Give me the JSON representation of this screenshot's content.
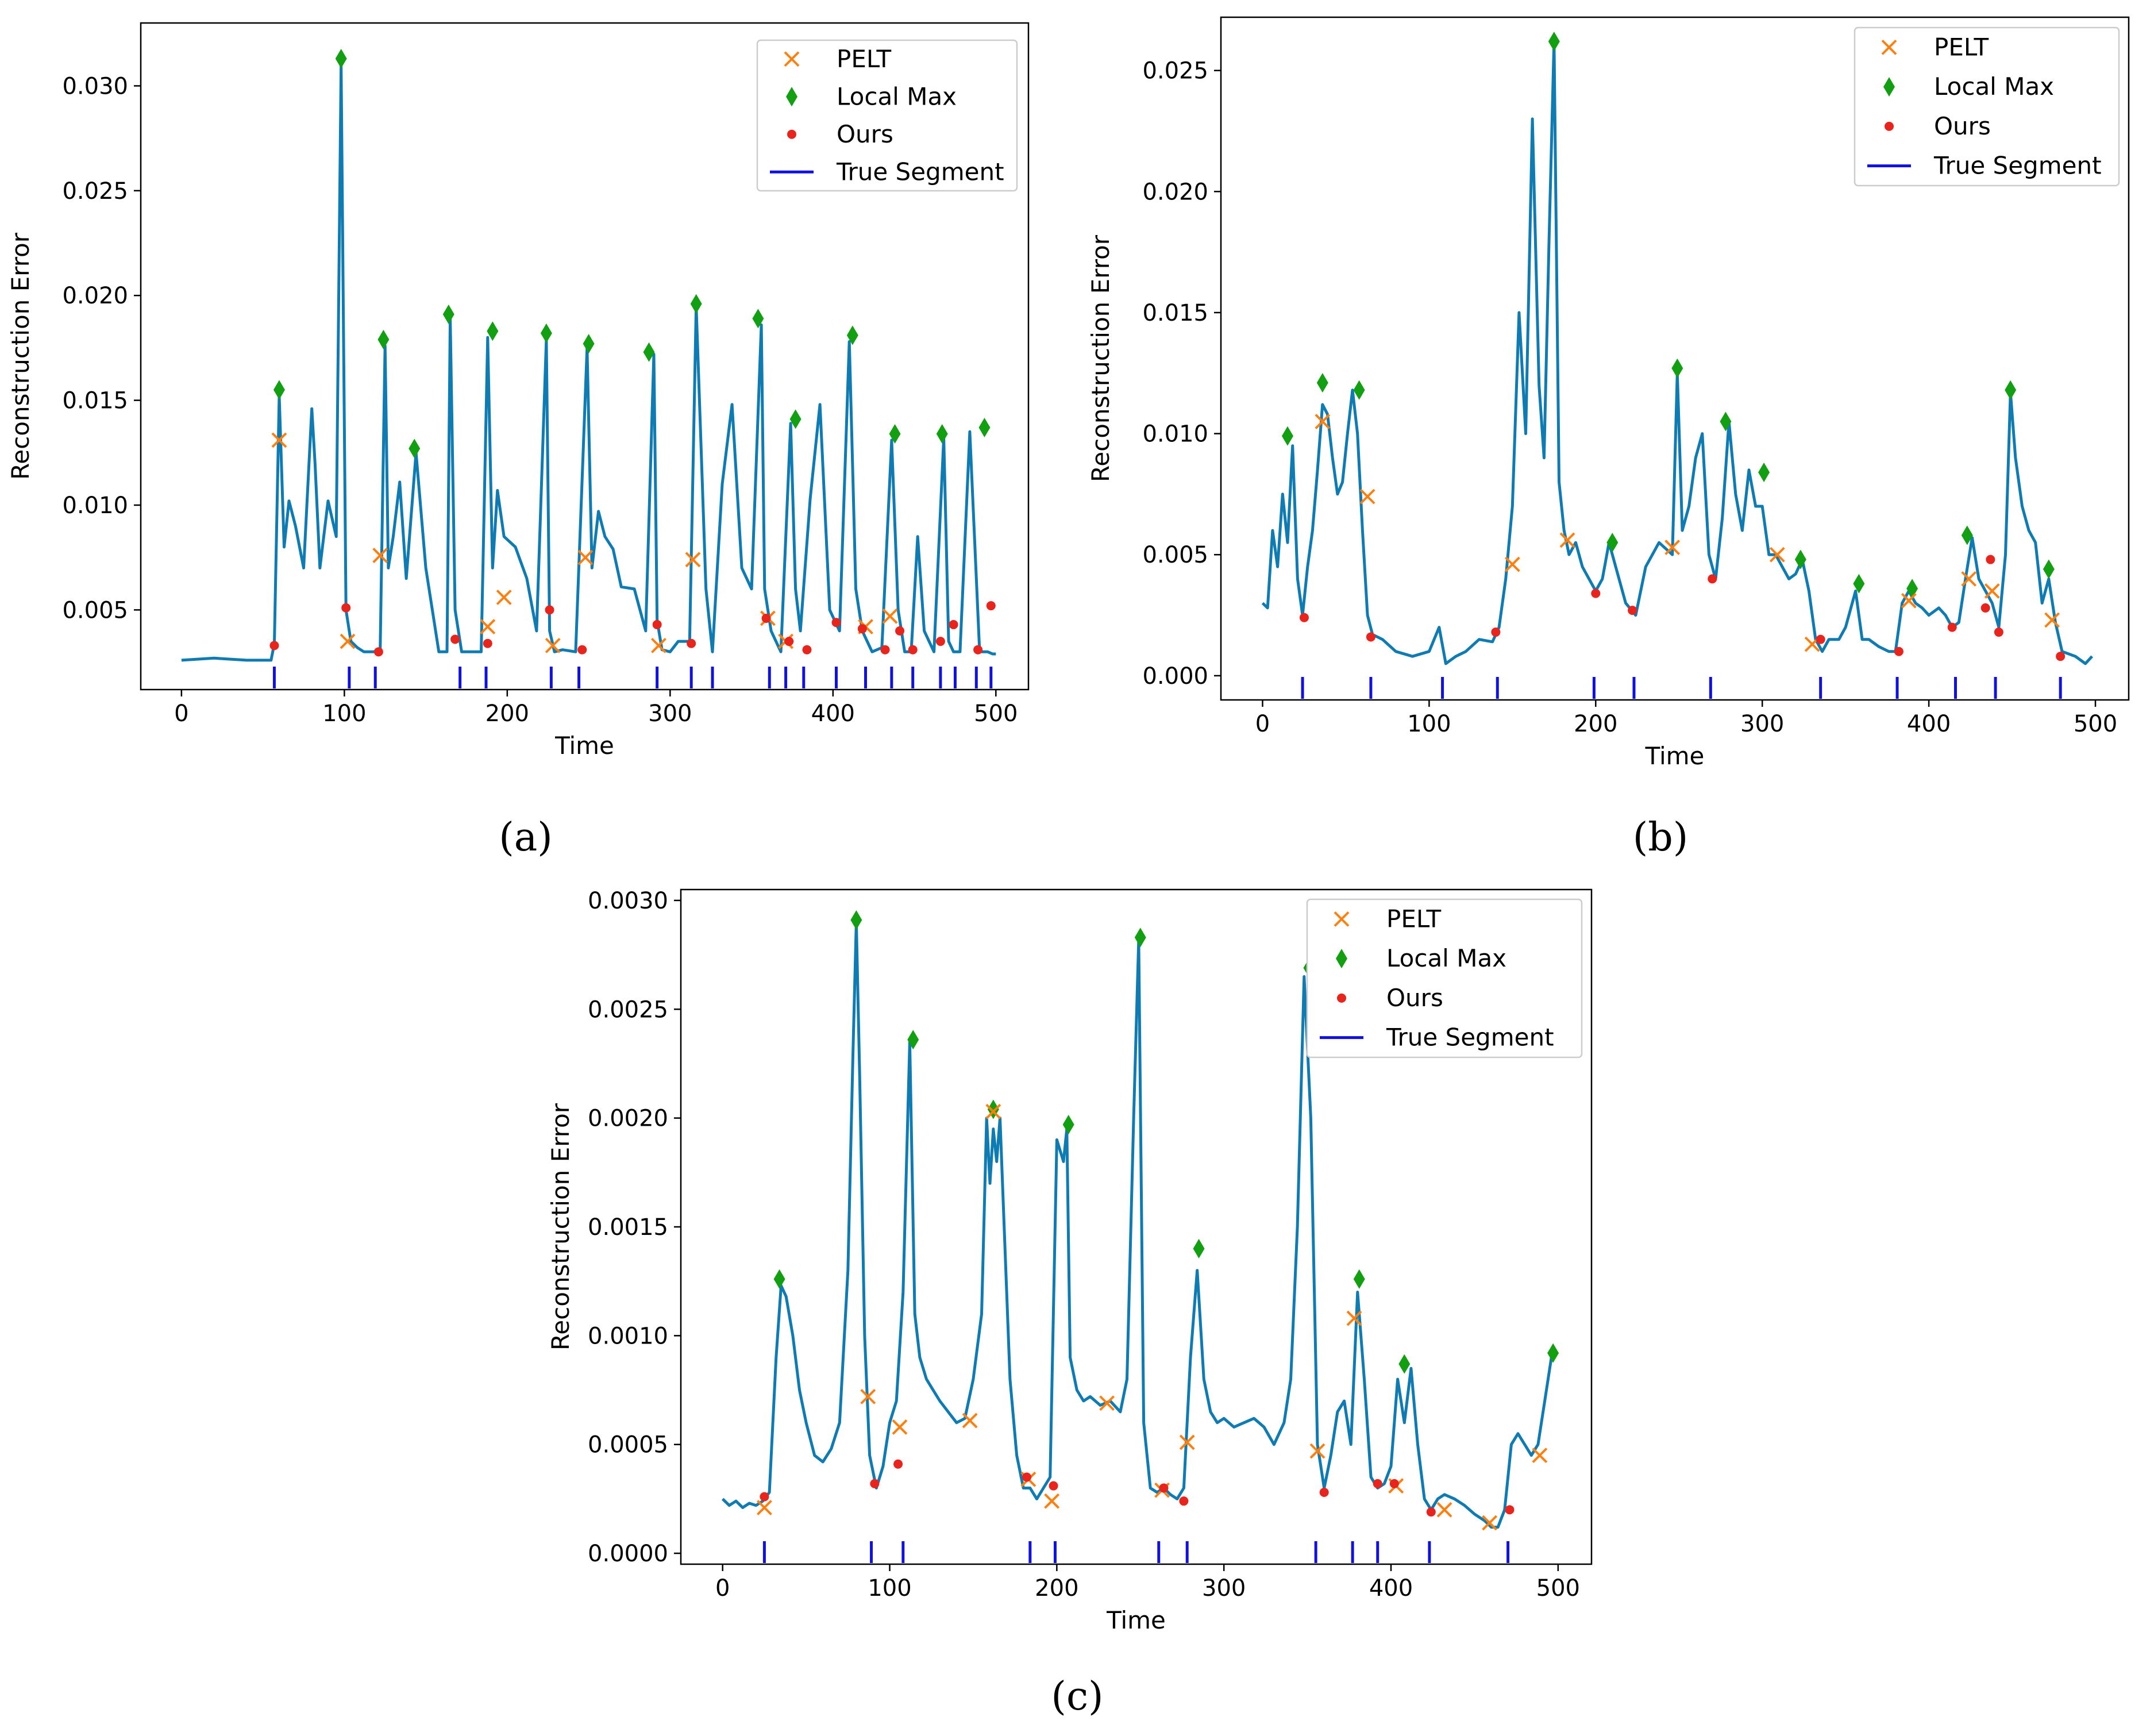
{
  "colors": {
    "line": "#1f77b4",
    "line_dark": "#0e7bb3",
    "pelt": "#ff7f0e",
    "local_max": "#12a012",
    "ours": "#e8241c",
    "true_segment": "#1010e0"
  },
  "chart_data": [
    {
      "panel": "a",
      "caption": "(a)",
      "type": "line",
      "xlabel": "Time",
      "ylabel": "Reconstruction Error",
      "xlim": [
        -25,
        520
      ],
      "ylim": [
        0.0012,
        0.033
      ],
      "xticks": [
        0,
        100,
        200,
        300,
        400,
        500
      ],
      "xtick_labels": [
        "0",
        "100",
        "200",
        "300",
        "400",
        "500"
      ],
      "yticks": [
        0.005,
        0.01,
        0.015,
        0.02,
        0.025,
        0.03
      ],
      "ytick_labels": [
        "0.005",
        "0.010",
        "0.015",
        "0.020",
        "0.025",
        "0.030"
      ],
      "legend": {
        "position": "top-right",
        "entries": [
          "PELT",
          "Local Max",
          "Ours",
          "True Segment"
        ]
      },
      "series": {
        "x": [
          0,
          20,
          40,
          55,
          57,
          60,
          63,
          66,
          70,
          75,
          80,
          82,
          85,
          90,
          95,
          98,
          101,
          104,
          108,
          112,
          118,
          122,
          125,
          127,
          130,
          134,
          138,
          144,
          150,
          158,
          163,
          165,
          168,
          172,
          176,
          184,
          188,
          191,
          194,
          198,
          205,
          212,
          218,
          224,
          226,
          229,
          234,
          242,
          249,
          252,
          256,
          260,
          265,
          270,
          278,
          285,
          290,
          292,
          295,
          300,
          305,
          312,
          316,
          318,
          322,
          326,
          332,
          338,
          344,
          350,
          356,
          358,
          362,
          368,
          374,
          377,
          380,
          386,
          392,
          398,
          404,
          410,
          412,
          414,
          418,
          424,
          430,
          436,
          440,
          444,
          448,
          452,
          456,
          462,
          468,
          471,
          474,
          478,
          484,
          490,
          495,
          498,
          500
        ],
        "y": [
          0.0026,
          0.0027,
          0.0026,
          0.0026,
          0.0034,
          0.0152,
          0.008,
          0.0102,
          0.009,
          0.007,
          0.0146,
          0.012,
          0.007,
          0.0102,
          0.0085,
          0.031,
          0.005,
          0.0035,
          0.0032,
          0.003,
          0.003,
          0.0031,
          0.0176,
          0.007,
          0.0085,
          0.0111,
          0.0065,
          0.0125,
          0.007,
          0.003,
          0.003,
          0.0189,
          0.005,
          0.003,
          0.003,
          0.003,
          0.018,
          0.007,
          0.0107,
          0.0085,
          0.008,
          0.0065,
          0.004,
          0.0179,
          0.004,
          0.003,
          0.0031,
          0.003,
          0.0175,
          0.007,
          0.0097,
          0.0085,
          0.0079,
          0.0061,
          0.006,
          0.004,
          0.0172,
          0.0045,
          0.0031,
          0.003,
          0.0035,
          0.0035,
          0.0195,
          0.015,
          0.006,
          0.003,
          0.011,
          0.0148,
          0.007,
          0.006,
          0.0186,
          0.006,
          0.004,
          0.003,
          0.0139,
          0.006,
          0.004,
          0.0103,
          0.0148,
          0.005,
          0.004,
          0.0178,
          0.012,
          0.006,
          0.004,
          0.003,
          0.0032,
          0.0131,
          0.005,
          0.003,
          0.003,
          0.0085,
          0.004,
          0.003,
          0.0132,
          0.0035,
          0.003,
          0.003,
          0.0135,
          0.003,
          0.003,
          0.0029,
          0.0029
        ]
      },
      "pelt": {
        "x": [
          60,
          102,
          122,
          188,
          198,
          228,
          248,
          293,
          314,
          360,
          371,
          420,
          435
        ],
        "y": [
          0.0131,
          0.0035,
          0.0076,
          0.0042,
          0.0056,
          0.0033,
          0.0075,
          0.0033,
          0.0074,
          0.0046,
          0.0035,
          0.0042,
          0.0047
        ]
      },
      "local_max": {
        "x": [
          60,
          98,
          124,
          143,
          164,
          191,
          224,
          250,
          287,
          316,
          354,
          377,
          412,
          438,
          467,
          493
        ],
        "y": [
          0.0155,
          0.0313,
          0.0179,
          0.0127,
          0.0191,
          0.0183,
          0.0182,
          0.0177,
          0.0173,
          0.0196,
          0.0189,
          0.0141,
          0.0181,
          0.0134,
          0.0134,
          0.0137
        ]
      },
      "ours": {
        "x": [
          57,
          101,
          121,
          168,
          188,
          226,
          246,
          292,
          313,
          359,
          373,
          384,
          402,
          418,
          432,
          441,
          449,
          466,
          474,
          489,
          497
        ],
        "y": [
          0.0033,
          0.0051,
          0.003,
          0.0036,
          0.0034,
          0.005,
          0.0031,
          0.0043,
          0.0034,
          0.0046,
          0.0035,
          0.0031,
          0.0044,
          0.0041,
          0.0031,
          0.004,
          0.0031,
          0.0035,
          0.0043,
          0.0031,
          0.0052
        ]
      },
      "true_segments": [
        57,
        103,
        119,
        171,
        187,
        227,
        244,
        292,
        313,
        326,
        361,
        371,
        382,
        402,
        420,
        436,
        449,
        466,
        475,
        488,
        497
      ]
    },
    {
      "panel": "b",
      "caption": "(b)",
      "type": "line",
      "xlabel": "Time",
      "ylabel": "Reconstruction Error",
      "xlim": [
        -25,
        520
      ],
      "ylim": [
        -0.001,
        0.0272
      ],
      "xticks": [
        0,
        100,
        200,
        300,
        400,
        500
      ],
      "xtick_labels": [
        "0",
        "100",
        "200",
        "300",
        "400",
        "500"
      ],
      "yticks": [
        0.0,
        0.005,
        0.01,
        0.015,
        0.02,
        0.025
      ],
      "ytick_labels": [
        "0.000",
        "0.005",
        "0.010",
        "0.015",
        "0.020",
        "0.025"
      ],
      "legend": {
        "position": "top-right",
        "entries": [
          "PELT",
          "Local Max",
          "Ours",
          "True Segment"
        ]
      },
      "series": {
        "x": [
          0,
          3,
          6,
          9,
          12,
          15,
          18,
          21,
          24,
          27,
          30,
          33,
          36,
          39,
          42,
          45,
          48,
          51,
          54,
          57,
          60,
          63,
          66,
          72,
          80,
          90,
          100,
          106,
          110,
          116,
          122,
          130,
          138,
          142,
          146,
          150,
          154,
          158,
          162,
          166,
          169,
          172,
          175,
          178,
          181,
          184,
          188,
          192,
          196,
          200,
          204,
          208,
          212,
          218,
          224,
          230,
          238,
          246,
          249,
          252,
          256,
          260,
          264,
          268,
          272,
          276,
          280,
          284,
          288,
          292,
          296,
          300,
          304,
          308,
          312,
          316,
          320,
          324,
          328,
          332,
          336,
          340,
          346,
          350,
          356,
          360,
          364,
          370,
          376,
          380,
          384,
          388,
          392,
          396,
          400,
          406,
          410,
          414,
          418,
          422,
          426,
          430,
          434,
          438,
          442,
          446,
          449,
          452,
          456,
          460,
          464,
          468,
          472,
          476,
          480,
          488,
          494,
          498
        ],
        "y": [
          0.003,
          0.0028,
          0.006,
          0.0045,
          0.0075,
          0.0055,
          0.0095,
          0.004,
          0.0025,
          0.0045,
          0.006,
          0.0085,
          0.0112,
          0.0108,
          0.009,
          0.0075,
          0.008,
          0.01,
          0.0118,
          0.01,
          0.006,
          0.0025,
          0.0017,
          0.0015,
          0.001,
          0.0008,
          0.001,
          0.002,
          0.0005,
          0.0008,
          0.001,
          0.0015,
          0.0014,
          0.002,
          0.004,
          0.007,
          0.015,
          0.01,
          0.023,
          0.012,
          0.009,
          0.018,
          0.0262,
          0.008,
          0.006,
          0.005,
          0.0055,
          0.0045,
          0.004,
          0.0035,
          0.004,
          0.0055,
          0.0045,
          0.003,
          0.0025,
          0.0045,
          0.0055,
          0.005,
          0.0125,
          0.006,
          0.007,
          0.009,
          0.01,
          0.005,
          0.004,
          0.0065,
          0.0105,
          0.0075,
          0.006,
          0.0085,
          0.007,
          0.007,
          0.005,
          0.005,
          0.0045,
          0.004,
          0.0042,
          0.0048,
          0.0035,
          0.0015,
          0.001,
          0.0015,
          0.0015,
          0.002,
          0.0035,
          0.0015,
          0.0015,
          0.0012,
          0.001,
          0.001,
          0.003,
          0.0035,
          0.003,
          0.0028,
          0.0025,
          0.0028,
          0.0025,
          0.002,
          0.0022,
          0.004,
          0.0057,
          0.004,
          0.0035,
          0.003,
          0.002,
          0.005,
          0.0117,
          0.009,
          0.007,
          0.006,
          0.0055,
          0.003,
          0.004,
          0.0022,
          0.001,
          0.0008,
          0.0005,
          0.0008
        ]
      },
      "pelt": {
        "x": [
          36,
          63,
          150,
          183,
          246,
          309,
          330,
          388,
          424,
          438,
          474
        ],
        "y": [
          0.0105,
          0.0074,
          0.0046,
          0.0056,
          0.0053,
          0.005,
          0.0013,
          0.0031,
          0.004,
          0.0035,
          0.0023
        ]
      },
      "local_max": {
        "x": [
          15,
          36,
          58,
          175,
          210,
          249,
          278,
          301,
          323,
          358,
          390,
          423,
          449,
          472
        ],
        "y": [
          0.0099,
          0.0121,
          0.0118,
          0.0262,
          0.0055,
          0.0127,
          0.0105,
          0.0084,
          0.0048,
          0.0038,
          0.0036,
          0.0058,
          0.0118,
          0.0044
        ]
      },
      "ours": {
        "x": [
          25,
          65,
          140,
          200,
          222,
          270,
          335,
          382,
          414,
          434,
          437,
          442,
          479
        ],
        "y": [
          0.0024,
          0.0016,
          0.0018,
          0.0034,
          0.0027,
          0.004,
          0.0015,
          0.001,
          0.002,
          0.0028,
          0.0048,
          0.0018,
          0.0008
        ]
      },
      "true_segments": [
        24,
        65,
        108,
        141,
        199,
        223,
        269,
        335,
        381,
        416,
        440,
        479
      ]
    },
    {
      "panel": "c",
      "caption": "(c)",
      "type": "line",
      "xlabel": "Time",
      "ylabel": "Reconstruction Error",
      "xlim": [
        -25,
        520
      ],
      "ylim": [
        -5e-05,
        0.00305
      ],
      "xticks": [
        0,
        100,
        200,
        300,
        400,
        500
      ],
      "xtick_labels": [
        "0",
        "100",
        "200",
        "300",
        "400",
        "500"
      ],
      "yticks": [
        0.0,
        0.0005,
        0.001,
        0.0015,
        0.002,
        0.0025,
        0.003
      ],
      "ytick_labels": [
        "0.0000",
        "0.0005",
        "0.0010",
        "0.0015",
        "0.0020",
        "0.0025",
        "0.0030"
      ],
      "legend": {
        "position": "top-right",
        "entries": [
          "PELT",
          "Local Max",
          "Ours",
          "True Segment"
        ]
      },
      "series": {
        "x": [
          0,
          4,
          8,
          12,
          16,
          20,
          24,
          28,
          32,
          35,
          38,
          42,
          46,
          50,
          55,
          60,
          65,
          70,
          75,
          78,
          80,
          82,
          85,
          88,
          92,
          96,
          100,
          104,
          108,
          112,
          115,
          118,
          122,
          126,
          130,
          135,
          140,
          145,
          150,
          155,
          158,
          160,
          162,
          164,
          166,
          168,
          172,
          176,
          180,
          184,
          188,
          192,
          196,
          200,
          204,
          206,
          208,
          212,
          216,
          220,
          226,
          232,
          238,
          242,
          246,
          249,
          252,
          256,
          260,
          264,
          268,
          272,
          276,
          280,
          284,
          288,
          292,
          296,
          300,
          306,
          312,
          318,
          324,
          330,
          336,
          340,
          344,
          348,
          352,
          356,
          360,
          364,
          368,
          372,
          376,
          380,
          384,
          388,
          392,
          396,
          400,
          404,
          408,
          412,
          416,
          420,
          424,
          428,
          432,
          438,
          444,
          450,
          456,
          460,
          464,
          468,
          472,
          476,
          480,
          484,
          488,
          492,
          496
        ],
        "y": [
          0.00025,
          0.00022,
          0.00024,
          0.00021,
          0.00023,
          0.00022,
          0.00024,
          0.00028,
          0.0009,
          0.00123,
          0.00118,
          0.001,
          0.00075,
          0.0006,
          0.00045,
          0.00042,
          0.00048,
          0.0006,
          0.0013,
          0.0023,
          0.0029,
          0.0022,
          0.001,
          0.00045,
          0.0003,
          0.0004,
          0.0006,
          0.0007,
          0.0012,
          0.00235,
          0.0011,
          0.0009,
          0.0008,
          0.00075,
          0.0007,
          0.00065,
          0.0006,
          0.00062,
          0.0008,
          0.0011,
          0.002,
          0.0017,
          0.00195,
          0.0018,
          0.002,
          0.0016,
          0.0008,
          0.00045,
          0.0003,
          0.0003,
          0.00025,
          0.0003,
          0.00035,
          0.0019,
          0.0018,
          0.00195,
          0.0009,
          0.00075,
          0.0007,
          0.00072,
          0.00068,
          0.0007,
          0.00065,
          0.0008,
          0.002,
          0.00282,
          0.0006,
          0.0003,
          0.00028,
          0.0003,
          0.00027,
          0.00025,
          0.0003,
          0.0009,
          0.0013,
          0.0008,
          0.00065,
          0.0006,
          0.00062,
          0.00058,
          0.0006,
          0.00062,
          0.00058,
          0.0005,
          0.0006,
          0.0008,
          0.0015,
          0.00265,
          0.002,
          0.0005,
          0.0003,
          0.00045,
          0.00065,
          0.0007,
          0.0005,
          0.0012,
          0.0008,
          0.00035,
          0.0003,
          0.00032,
          0.0004,
          0.0008,
          0.0006,
          0.00085,
          0.0005,
          0.00025,
          0.0002,
          0.00025,
          0.00027,
          0.00025,
          0.00022,
          0.00018,
          0.00015,
          0.00012,
          0.00012,
          0.0002,
          0.0005,
          0.00055,
          0.0005,
          0.00045,
          0.0005,
          0.0007,
          0.0009
        ]
      },
      "pelt": {
        "x": [
          25,
          87,
          106,
          148,
          162,
          183,
          197,
          230,
          263,
          278,
          356,
          378,
          403,
          432,
          459,
          489
        ],
        "y": [
          0.00021,
          0.00072,
          0.00058,
          0.00061,
          0.00203,
          0.00034,
          0.00024,
          0.00069,
          0.00029,
          0.00051,
          0.00047,
          0.00108,
          0.00031,
          0.0002,
          0.00014,
          0.00045
        ]
      },
      "local_max": {
        "x": [
          34,
          80,
          114,
          162,
          207,
          250,
          285,
          351,
          381,
          408,
          497
        ],
        "y": [
          0.00126,
          0.00291,
          0.00236,
          0.00204,
          0.00197,
          0.00283,
          0.0014,
          0.00269,
          0.00126,
          0.00087,
          0.00092
        ]
      },
      "ours": {
        "x": [
          25,
          91,
          105,
          182,
          198,
          264,
          276,
          360,
          392,
          402,
          424,
          471
        ],
        "y": [
          0.00026,
          0.00032,
          0.00041,
          0.00035,
          0.00031,
          0.0003,
          0.00024,
          0.00028,
          0.00032,
          0.00032,
          0.00019,
          0.0002
        ]
      },
      "true_segments": [
        25,
        89,
        108,
        184,
        199,
        261,
        278,
        355,
        377,
        392,
        423,
        470
      ]
    }
  ]
}
